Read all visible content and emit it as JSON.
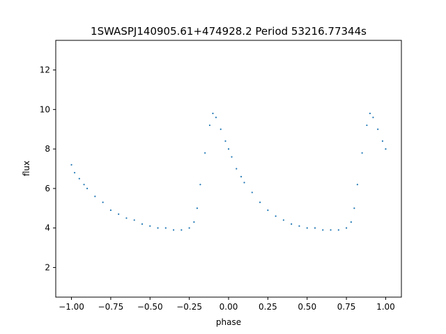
{
  "chart_data": {
    "type": "scatter",
    "title": "1SWASPJ140905.61+474928.2 Period 53216.77344s",
    "xlabel": "phase",
    "ylabel": "flux",
    "xlim": [
      -1.1,
      1.1
    ],
    "ylim": [
      0.5,
      13.5
    ],
    "xticks": [
      -1.0,
      -0.75,
      -0.5,
      -0.25,
      0.0,
      0.25,
      0.5,
      0.75,
      1.0
    ],
    "xtick_labels": [
      "−1.00",
      "−0.75",
      "−0.50",
      "−0.25",
      "0.00",
      "0.25",
      "0.50",
      "0.75",
      "1.00"
    ],
    "yticks": [
      2,
      4,
      6,
      8,
      10,
      12
    ],
    "ytick_labels": [
      "2",
      "4",
      "6",
      "8",
      "10",
      "12"
    ],
    "grid": false,
    "legend": "none",
    "marker_color": "#1f77b4",
    "series": [
      {
        "x": [
          -1.0,
          -0.98,
          -0.95,
          -0.92,
          -0.9,
          -0.85,
          -0.8,
          -0.75,
          -0.7,
          -0.65,
          -0.6,
          -0.55,
          -0.5,
          -0.45,
          -0.4,
          -0.35,
          -0.3,
          -0.25,
          -0.22,
          -0.2,
          -0.18,
          -0.15,
          -0.12,
          -0.1,
          -0.08,
          -0.05,
          -0.02,
          0.0,
          0.02,
          0.05,
          0.08,
          0.1,
          0.15,
          0.2,
          0.25,
          0.3,
          0.35,
          0.4,
          0.45,
          0.5,
          0.55,
          0.6,
          0.65,
          0.7,
          0.75,
          0.78,
          0.8,
          0.82,
          0.85,
          0.88,
          0.9,
          0.92,
          0.95,
          0.98,
          1.0
        ],
        "y": [
          7.2,
          6.8,
          6.5,
          6.2,
          6.0,
          5.6,
          5.3,
          4.9,
          4.7,
          4.5,
          4.4,
          4.2,
          4.1,
          4.0,
          4.0,
          3.9,
          3.9,
          4.0,
          4.3,
          5.0,
          6.2,
          7.8,
          9.2,
          9.8,
          9.6,
          9.0,
          8.4,
          8.0,
          7.6,
          7.0,
          6.6,
          6.3,
          5.8,
          5.3,
          4.9,
          4.6,
          4.4,
          4.2,
          4.1,
          4.0,
          4.0,
          3.9,
          3.9,
          3.9,
          4.0,
          4.3,
          5.0,
          6.2,
          7.8,
          9.2,
          9.8,
          9.6,
          9.0,
          8.4,
          8.0
        ]
      }
    ]
  }
}
